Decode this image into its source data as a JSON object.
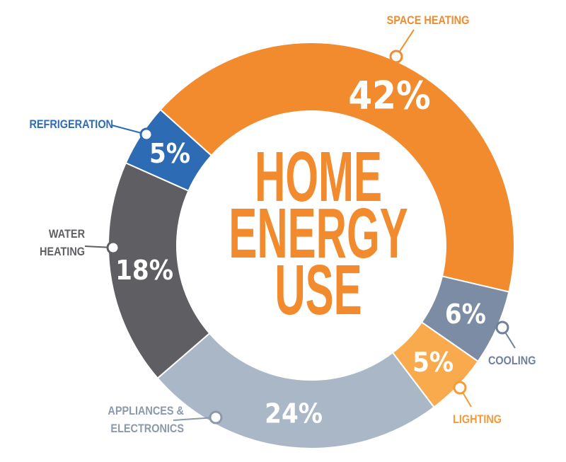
{
  "chart_data": {
    "type": "donut",
    "title": "HOME ENERGY USE",
    "categories": [
      "SPACE HEATING",
      "COOLING",
      "LIGHTING",
      "APPLIANCES & ELECTRONICS",
      "WATER HEATING",
      "REFRIGERATION"
    ],
    "values": [
      42,
      6,
      5,
      24,
      18,
      5
    ],
    "value_labels": [
      "42%",
      "6%",
      "5%",
      "24%",
      "18%",
      "5%"
    ],
    "colors": [
      "#f28a2e",
      "#7b8ca4",
      "#f9aa4c",
      "#aab7c7",
      "#5f5f63",
      "#2d6cb4"
    ],
    "label_colors": [
      "#f28a2e",
      "#6f809a",
      "#f49a36",
      "#8c99aa",
      "#5f5f63",
      "#2d6cb4"
    ],
    "title_color": "#f28a2e"
  }
}
